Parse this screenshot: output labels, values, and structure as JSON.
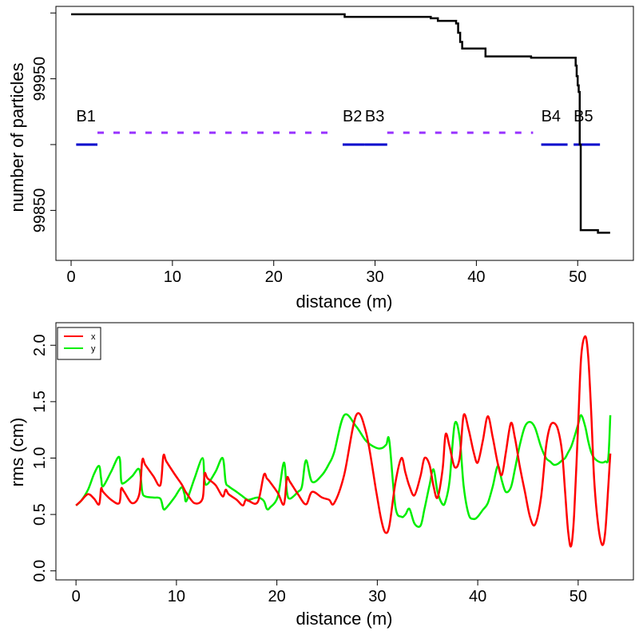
{
  "chart_data": [
    {
      "type": "line",
      "title": "",
      "xlabel": "distance (m)",
      "ylabel": "number of particles",
      "xlim": [
        -1.5,
        55.5
      ],
      "ylim": [
        99812,
        100005
      ],
      "xticks": [
        0,
        10,
        20,
        30,
        40,
        50
      ],
      "xtick_labels": [
        "0",
        "10",
        "20",
        "30",
        "40",
        "50"
      ],
      "yticks": [
        99850,
        99900,
        99950,
        100000
      ],
      "ytick_labels": [
        "99850",
        "",
        "99950",
        ""
      ],
      "series": [
        {
          "name": "particles",
          "color": "#000000",
          "step": true,
          "x": [
            0,
            27.0,
            35.5,
            36.2,
            38.0,
            38.2,
            38.4,
            38.6,
            40.5,
            40.9,
            45.0,
            45.4,
            49.7,
            49.8,
            49.9,
            50.0,
            50.1,
            50.2,
            50.3,
            50.5,
            51.6,
            52.0,
            53.2
          ],
          "y": [
            99999,
            99997,
            99996,
            99994,
            99992,
            99985,
            99978,
            99973,
            99973,
            99967,
            99967,
            99966,
            99966,
            99960,
            99952,
            99945,
            99940,
            99900,
            99835,
            99835,
            99835,
            99833,
            99833
          ]
        }
      ],
      "elements": {
        "color": "#0000cc",
        "level": 99900,
        "items": [
          {
            "label": "B1",
            "start": 0.5,
            "end": 2.6
          },
          {
            "label": "B2",
            "start": 26.8,
            "end": 29.0
          },
          {
            "label": "B3",
            "start": 29.0,
            "end": 31.2
          },
          {
            "label": "B4",
            "start": 46.4,
            "end": 49.0
          },
          {
            "label": "B5",
            "start": 49.6,
            "end": 52.2
          }
        ]
      },
      "drifts": {
        "color": "#9933ff",
        "level": 99909,
        "segments": [
          [
            2.6,
            25.6
          ],
          [
            31.2,
            45.6
          ]
        ]
      }
    },
    {
      "type": "line",
      "title": "",
      "xlabel": "distance (m)",
      "ylabel": "rms (cm)",
      "xlim": [
        -2,
        55.5
      ],
      "ylim": [
        -0.08,
        2.2
      ],
      "xticks": [
        0,
        10,
        20,
        30,
        40,
        50
      ],
      "xtick_labels": [
        "0",
        "10",
        "20",
        "30",
        "40",
        "50"
      ],
      "yticks": [
        0.0,
        0.5,
        1.0,
        1.5,
        2.0
      ],
      "ytick_labels": [
        "0.0",
        "0.5",
        "1.0",
        "1.5",
        "2.0"
      ],
      "legend_position": "top-left",
      "series": [
        {
          "name": "x",
          "color": "#ff0000",
          "x": [
            0,
            0.5,
            1.2,
            1.8,
            2.3,
            2.5,
            2.7,
            3.5,
            4.3,
            4.5,
            4.8,
            5.6,
            6.3,
            6.6,
            6.9,
            7.7,
            8.4,
            8.7,
            9.0,
            9.8,
            10.5,
            10.8,
            11.0,
            11.8,
            12.6,
            12.8,
            13.1,
            13.9,
            14.6,
            14.9,
            15.2,
            16.0,
            16.6,
            16.9,
            17.2,
            18.1,
            18.7,
            19.0,
            19.3,
            20.1,
            20.7,
            21.0,
            21.3,
            22.1,
            22.9,
            23.5,
            24.5,
            25.2,
            25.7,
            26.7,
            27.9,
            28.9,
            29.9,
            30.4,
            30.8,
            31.2,
            31.8,
            32.4,
            32.8,
            33.2,
            33.7,
            34.3,
            34.7,
            35.2,
            35.6,
            36.0,
            36.5,
            36.8,
            37.2,
            37.7,
            38.2,
            38.6,
            39.1,
            39.6,
            40.0,
            40.5,
            41.0,
            41.5,
            42.0,
            42.4,
            42.8,
            43.3,
            43.7,
            44.2,
            44.7,
            45.2,
            45.7,
            46.3,
            46.8,
            47.2,
            47.6,
            48.0,
            48.4,
            48.7,
            49.0,
            49.3,
            49.6,
            50.0,
            50.3,
            50.7,
            51.0,
            51.3,
            51.6,
            52.0,
            52.4,
            52.7,
            53.0,
            53.2
          ],
          "y": [
            0.58,
            0.62,
            0.68,
            0.64,
            0.59,
            0.73,
            0.7,
            0.63,
            0.6,
            0.73,
            0.7,
            0.6,
            0.68,
            0.98,
            0.94,
            0.84,
            0.76,
            1.02,
            0.97,
            0.86,
            0.77,
            0.72,
            0.69,
            0.6,
            0.64,
            0.86,
            0.82,
            0.76,
            0.66,
            0.72,
            0.68,
            0.63,
            0.58,
            0.63,
            0.62,
            0.61,
            0.85,
            0.82,
            0.79,
            0.69,
            0.59,
            0.82,
            0.79,
            0.68,
            0.59,
            0.7,
            0.65,
            0.63,
            0.6,
            0.85,
            1.38,
            1.22,
            0.7,
            0.45,
            0.34,
            0.4,
            0.78,
            1.0,
            0.87,
            0.75,
            0.67,
            0.84,
            1.0,
            0.94,
            0.75,
            0.65,
            0.9,
            1.21,
            1.1,
            0.92,
            1.0,
            1.38,
            1.25,
            1.05,
            0.96,
            1.15,
            1.37,
            1.18,
            0.95,
            0.85,
            1.05,
            1.31,
            1.18,
            0.92,
            0.7,
            0.48,
            0.41,
            0.65,
            1.1,
            1.28,
            1.31,
            1.25,
            1.05,
            0.7,
            0.35,
            0.22,
            0.5,
            1.3,
            1.9,
            2.08,
            1.9,
            1.4,
            0.8,
            0.4,
            0.23,
            0.35,
            0.75,
            1.04
          ]
        },
        {
          "name": "y",
          "color": "#00ee00",
          "x": [
            0,
            0.5,
            1.2,
            1.8,
            2.3,
            2.5,
            2.7,
            3.5,
            4.3,
            4.5,
            4.8,
            5.6,
            6.3,
            6.6,
            6.9,
            7.7,
            8.4,
            8.7,
            9.0,
            9.8,
            10.5,
            10.8,
            11.0,
            11.8,
            12.6,
            12.8,
            13.1,
            13.9,
            14.6,
            14.9,
            15.2,
            16.0,
            16.6,
            16.9,
            17.2,
            18.1,
            18.7,
            19.0,
            19.3,
            20.1,
            20.7,
            21.0,
            21.3,
            22.1,
            22.5,
            22.9,
            23.5,
            24.5,
            25.2,
            25.7,
            26.7,
            27.9,
            28.9,
            29.9,
            30.5,
            30.9,
            31.2,
            31.8,
            32.4,
            32.8,
            33.2,
            33.7,
            34.3,
            34.7,
            35.2,
            35.6,
            36.0,
            36.5,
            36.8,
            37.2,
            37.7,
            38.2,
            38.6,
            39.1,
            39.6,
            40.0,
            40.5,
            41.0,
            41.5,
            42.0,
            42.4,
            42.8,
            43.3,
            43.7,
            44.2,
            44.7,
            45.2,
            45.7,
            46.3,
            46.8,
            47.2,
            47.6,
            48.0,
            48.4,
            48.7,
            49.0,
            49.3,
            49.6,
            50.0,
            50.3,
            50.7,
            51.0,
            51.3,
            51.6,
            52.0,
            52.4,
            52.7,
            53.0,
            53.2
          ],
          "y": [
            0.58,
            0.62,
            0.72,
            0.86,
            0.93,
            0.82,
            0.75,
            0.88,
            1.01,
            0.8,
            0.78,
            0.84,
            0.9,
            0.7,
            0.66,
            0.65,
            0.64,
            0.55,
            0.56,
            0.65,
            0.74,
            0.68,
            0.62,
            0.82,
            1.0,
            0.8,
            0.77,
            0.88,
            1.0,
            0.79,
            0.75,
            0.7,
            0.66,
            0.64,
            0.63,
            0.65,
            0.62,
            0.55,
            0.56,
            0.66,
            0.96,
            0.7,
            0.64,
            0.7,
            0.75,
            0.98,
            0.79,
            0.85,
            0.95,
            1.05,
            1.38,
            1.28,
            1.15,
            1.09,
            1.09,
            1.12,
            1.15,
            0.57,
            0.48,
            0.5,
            0.55,
            0.42,
            0.4,
            0.55,
            0.76,
            0.9,
            0.7,
            0.59,
            0.62,
            0.8,
            1.3,
            1.18,
            0.75,
            0.5,
            0.46,
            0.48,
            0.54,
            0.6,
            0.75,
            0.93,
            0.8,
            0.7,
            0.74,
            0.9,
            1.12,
            1.28,
            1.32,
            1.27,
            1.1,
            1.0,
            0.97,
            0.94,
            0.95,
            0.98,
            1.0,
            1.05,
            1.1,
            1.18,
            1.3,
            1.38,
            1.28,
            1.15,
            1.05,
            1.0,
            0.97,
            0.96,
            0.97,
            1.0,
            1.38
          ]
        }
      ]
    }
  ]
}
